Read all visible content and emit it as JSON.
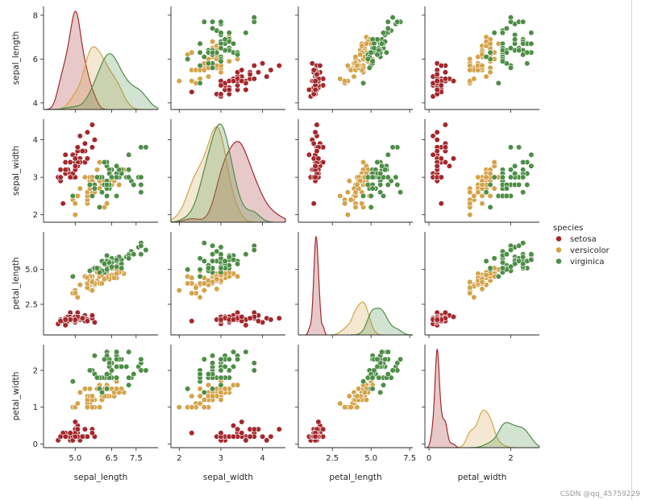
{
  "chart_data": {
    "type": "pairplot",
    "variables": [
      "sepal_length",
      "sepal_width",
      "petal_length",
      "petal_width"
    ],
    "axes": {
      "sepal_length": {
        "lim": [
          3.7,
          8.4
        ],
        "ticks": [
          5.0,
          6.5,
          7.5
        ],
        "tick_labels": [
          "5.0",
          "6.5",
          "7.5"
        ],
        "y_ticks": [
          4,
          6,
          8
        ],
        "y_tick_labels": [
          "4",
          "6",
          "8"
        ]
      },
      "sepal_width": {
        "lim": [
          1.8,
          4.55
        ],
        "ticks": [
          2,
          3,
          4
        ],
        "tick_labels": [
          "2",
          "3",
          "4"
        ],
        "y_ticks": [
          2,
          3,
          4
        ],
        "y_tick_labels": [
          "2",
          "3",
          "4"
        ]
      },
      "petal_length": {
        "lim": [
          0.3,
          7.7
        ],
        "ticks": [
          2.5,
          5.0,
          7.5
        ],
        "tick_labels": [
          "2.5",
          "5.0",
          "7.5"
        ],
        "y_ticks": [
          2.5,
          5.0
        ],
        "y_tick_labels": [
          "2.5",
          "5.0"
        ]
      },
      "petal_width": {
        "lim": [
          -0.1,
          2.7
        ],
        "ticks": [
          0,
          2
        ],
        "tick_labels": [
          "0",
          "2"
        ],
        "y_ticks": [
          0,
          1,
          2
        ],
        "y_tick_labels": [
          "0",
          "1",
          "2"
        ]
      }
    },
    "legend": {
      "title": "species",
      "placement": "right",
      "entries": [
        "setosa",
        "versicolor",
        "virginica"
      ]
    },
    "colors": {
      "setosa": "#a3282c",
      "versicolor": "#d4a34a",
      "virginica": "#4d8e46"
    },
    "series": [
      {
        "name": "setosa",
        "points": [
          [
            5.1,
            3.5,
            1.4,
            0.2
          ],
          [
            4.9,
            3.0,
            1.4,
            0.2
          ],
          [
            4.7,
            3.2,
            1.3,
            0.2
          ],
          [
            4.6,
            3.1,
            1.5,
            0.2
          ],
          [
            5.0,
            3.6,
            1.4,
            0.2
          ],
          [
            5.4,
            3.9,
            1.7,
            0.4
          ],
          [
            4.6,
            3.4,
            1.4,
            0.3
          ],
          [
            5.0,
            3.4,
            1.5,
            0.2
          ],
          [
            4.4,
            2.9,
            1.4,
            0.2
          ],
          [
            4.9,
            3.1,
            1.5,
            0.1
          ],
          [
            5.4,
            3.7,
            1.5,
            0.2
          ],
          [
            4.8,
            3.4,
            1.6,
            0.2
          ],
          [
            4.8,
            3.0,
            1.4,
            0.1
          ],
          [
            4.3,
            3.0,
            1.1,
            0.1
          ],
          [
            5.8,
            4.0,
            1.2,
            0.2
          ],
          [
            5.7,
            4.4,
            1.5,
            0.4
          ],
          [
            5.4,
            3.9,
            1.3,
            0.4
          ],
          [
            5.1,
            3.5,
            1.4,
            0.3
          ],
          [
            5.7,
            3.8,
            1.7,
            0.3
          ],
          [
            5.1,
            3.8,
            1.5,
            0.3
          ],
          [
            5.4,
            3.4,
            1.7,
            0.2
          ],
          [
            5.1,
            3.7,
            1.5,
            0.4
          ],
          [
            4.6,
            3.6,
            1.0,
            0.2
          ],
          [
            5.1,
            3.3,
            1.7,
            0.5
          ],
          [
            4.8,
            3.4,
            1.9,
            0.2
          ],
          [
            5.0,
            3.0,
            1.6,
            0.2
          ],
          [
            5.0,
            3.4,
            1.6,
            0.4
          ],
          [
            5.2,
            3.5,
            1.5,
            0.2
          ],
          [
            5.2,
            3.4,
            1.4,
            0.2
          ],
          [
            4.7,
            3.2,
            1.6,
            0.2
          ],
          [
            4.8,
            3.1,
            1.6,
            0.2
          ],
          [
            5.4,
            3.4,
            1.5,
            0.4
          ],
          [
            5.2,
            4.1,
            1.5,
            0.1
          ],
          [
            5.5,
            4.2,
            1.4,
            0.2
          ],
          [
            4.9,
            3.1,
            1.5,
            0.2
          ],
          [
            5.0,
            3.2,
            1.2,
            0.2
          ],
          [
            5.5,
            3.5,
            1.3,
            0.2
          ],
          [
            4.9,
            3.6,
            1.4,
            0.1
          ],
          [
            4.4,
            3.0,
            1.3,
            0.2
          ],
          [
            5.1,
            3.4,
            1.5,
            0.2
          ],
          [
            5.0,
            3.5,
            1.3,
            0.3
          ],
          [
            4.5,
            2.3,
            1.3,
            0.3
          ],
          [
            4.4,
            3.2,
            1.3,
            0.2
          ],
          [
            5.0,
            3.5,
            1.6,
            0.6
          ],
          [
            5.1,
            3.8,
            1.9,
            0.4
          ],
          [
            4.8,
            3.0,
            1.4,
            0.3
          ],
          [
            5.1,
            3.8,
            1.6,
            0.2
          ],
          [
            4.6,
            3.2,
            1.4,
            0.2
          ],
          [
            5.3,
            3.7,
            1.5,
            0.2
          ],
          [
            5.0,
            3.3,
            1.4,
            0.2
          ]
        ]
      },
      {
        "name": "versicolor",
        "points": [
          [
            7.0,
            3.2,
            4.7,
            1.4
          ],
          [
            6.4,
            3.2,
            4.5,
            1.5
          ],
          [
            6.9,
            3.1,
            4.9,
            1.5
          ],
          [
            5.5,
            2.3,
            4.0,
            1.3
          ],
          [
            6.5,
            2.8,
            4.6,
            1.5
          ],
          [
            5.7,
            2.8,
            4.5,
            1.3
          ],
          [
            6.3,
            3.3,
            4.7,
            1.6
          ],
          [
            4.9,
            2.4,
            3.3,
            1.0
          ],
          [
            6.6,
            2.9,
            4.6,
            1.3
          ],
          [
            5.2,
            2.7,
            3.9,
            1.4
          ],
          [
            5.0,
            2.0,
            3.5,
            1.0
          ],
          [
            5.9,
            3.0,
            4.2,
            1.5
          ],
          [
            6.0,
            2.2,
            4.0,
            1.0
          ],
          [
            6.1,
            2.9,
            4.7,
            1.4
          ],
          [
            5.6,
            2.9,
            3.6,
            1.3
          ],
          [
            6.7,
            3.1,
            4.4,
            1.4
          ],
          [
            5.6,
            3.0,
            4.5,
            1.5
          ],
          [
            5.8,
            2.7,
            4.1,
            1.0
          ],
          [
            6.2,
            2.2,
            4.5,
            1.5
          ],
          [
            5.6,
            2.5,
            3.9,
            1.1
          ],
          [
            5.9,
            3.2,
            4.8,
            1.8
          ],
          [
            6.1,
            2.8,
            4.0,
            1.3
          ],
          [
            6.3,
            2.5,
            4.9,
            1.5
          ],
          [
            6.1,
            2.8,
            4.7,
            1.2
          ],
          [
            6.4,
            2.9,
            4.3,
            1.3
          ],
          [
            6.6,
            3.0,
            4.4,
            1.4
          ],
          [
            6.8,
            2.8,
            4.8,
            1.4
          ],
          [
            6.7,
            3.0,
            5.0,
            1.7
          ],
          [
            6.0,
            2.9,
            4.5,
            1.5
          ],
          [
            5.7,
            2.6,
            3.5,
            1.0
          ],
          [
            5.5,
            2.4,
            3.8,
            1.1
          ],
          [
            5.5,
            2.4,
            3.7,
            1.0
          ],
          [
            5.8,
            2.7,
            3.9,
            1.2
          ],
          [
            6.0,
            2.7,
            5.1,
            1.6
          ],
          [
            5.4,
            3.0,
            4.5,
            1.5
          ],
          [
            6.0,
            3.4,
            4.5,
            1.6
          ],
          [
            6.7,
            3.1,
            4.7,
            1.5
          ],
          [
            6.3,
            2.3,
            4.4,
            1.3
          ],
          [
            5.6,
            3.0,
            4.1,
            1.3
          ],
          [
            5.5,
            2.5,
            4.0,
            1.3
          ],
          [
            5.5,
            2.6,
            4.4,
            1.2
          ],
          [
            6.1,
            3.0,
            4.6,
            1.4
          ],
          [
            5.8,
            2.6,
            4.0,
            1.2
          ],
          [
            5.0,
            2.3,
            3.3,
            1.0
          ],
          [
            5.6,
            2.7,
            4.2,
            1.3
          ],
          [
            5.7,
            3.0,
            4.2,
            1.2
          ],
          [
            5.7,
            2.9,
            4.2,
            1.3
          ],
          [
            6.2,
            2.9,
            4.3,
            1.3
          ],
          [
            5.1,
            2.5,
            3.0,
            1.1
          ],
          [
            5.7,
            2.8,
            4.1,
            1.3
          ]
        ]
      },
      {
        "name": "virginica",
        "points": [
          [
            6.3,
            3.3,
            6.0,
            2.5
          ],
          [
            5.8,
            2.7,
            5.1,
            1.9
          ],
          [
            7.1,
            3.0,
            5.9,
            2.1
          ],
          [
            6.3,
            2.9,
            5.6,
            1.8
          ],
          [
            6.5,
            3.0,
            5.8,
            2.2
          ],
          [
            7.6,
            3.0,
            6.6,
            2.1
          ],
          [
            4.9,
            2.5,
            4.5,
            1.7
          ],
          [
            7.3,
            2.9,
            6.3,
            1.8
          ],
          [
            6.7,
            2.5,
            5.8,
            1.8
          ],
          [
            7.2,
            3.6,
            6.1,
            2.5
          ],
          [
            6.5,
            3.2,
            5.1,
            2.0
          ],
          [
            6.4,
            2.7,
            5.3,
            1.9
          ],
          [
            6.8,
            3.0,
            5.5,
            2.1
          ],
          [
            5.7,
            2.5,
            5.0,
            2.0
          ],
          [
            5.8,
            2.8,
            5.1,
            2.4
          ],
          [
            6.4,
            3.2,
            5.3,
            2.3
          ],
          [
            6.5,
            3.0,
            5.5,
            1.8
          ],
          [
            7.7,
            3.8,
            6.7,
            2.2
          ],
          [
            7.7,
            2.6,
            6.9,
            2.3
          ],
          [
            6.0,
            2.2,
            5.0,
            1.5
          ],
          [
            6.9,
            3.2,
            5.7,
            2.3
          ],
          [
            5.6,
            2.8,
            4.9,
            2.0
          ],
          [
            7.7,
            2.8,
            6.7,
            2.0
          ],
          [
            6.3,
            2.7,
            4.9,
            1.8
          ],
          [
            6.7,
            3.3,
            5.7,
            2.1
          ],
          [
            7.2,
            3.2,
            6.0,
            1.8
          ],
          [
            6.2,
            2.8,
            4.8,
            1.8
          ],
          [
            6.1,
            3.0,
            4.9,
            1.8
          ],
          [
            6.4,
            2.8,
            5.6,
            2.1
          ],
          [
            7.2,
            3.0,
            5.8,
            1.6
          ],
          [
            7.4,
            2.8,
            6.1,
            1.9
          ],
          [
            7.9,
            3.8,
            6.4,
            2.0
          ],
          [
            6.4,
            2.8,
            5.6,
            2.2
          ],
          [
            6.3,
            2.8,
            5.1,
            1.5
          ],
          [
            6.1,
            2.6,
            5.6,
            1.4
          ],
          [
            7.7,
            3.0,
            6.1,
            2.3
          ],
          [
            6.3,
            3.4,
            5.6,
            2.4
          ],
          [
            6.4,
            3.1,
            5.5,
            1.8
          ],
          [
            6.0,
            3.0,
            4.8,
            1.8
          ],
          [
            6.9,
            3.1,
            5.4,
            2.1
          ],
          [
            6.7,
            3.1,
            5.6,
            2.4
          ],
          [
            6.9,
            3.1,
            5.1,
            2.3
          ],
          [
            5.8,
            2.7,
            5.1,
            1.9
          ],
          [
            6.8,
            3.2,
            5.9,
            2.3
          ],
          [
            6.7,
            3.3,
            5.7,
            2.5
          ],
          [
            6.7,
            3.0,
            5.2,
            2.3
          ],
          [
            6.3,
            2.5,
            5.0,
            1.9
          ],
          [
            6.5,
            3.0,
            5.2,
            2.0
          ],
          [
            6.2,
            3.4,
            5.4,
            2.3
          ],
          [
            5.9,
            3.0,
            5.1,
            1.8
          ]
        ]
      }
    ]
  },
  "watermark": "CSDN @qq_45759229"
}
